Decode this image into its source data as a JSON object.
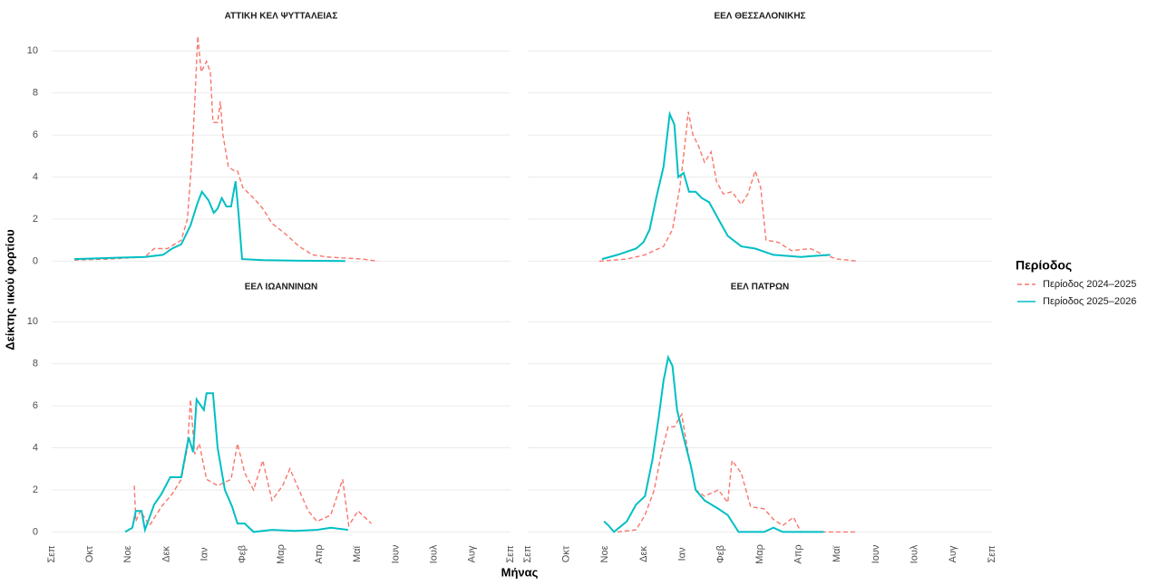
{
  "chart_data": {
    "type": "line",
    "ylabel": "Δείκτης ιικού φορτίου",
    "xlabel": "Μήνας",
    "xlim": [
      0,
      12
    ],
    "xticks": [
      {
        "value": 0,
        "label": "Σεπ"
      },
      {
        "value": 1,
        "label": "Οκτ"
      },
      {
        "value": 2,
        "label": "Νοε"
      },
      {
        "value": 3,
        "label": "Δεκ"
      },
      {
        "value": 4,
        "label": "Ιαν"
      },
      {
        "value": 5,
        "label": "Φεβ"
      },
      {
        "value": 6,
        "label": "Μαρ"
      },
      {
        "value": 7,
        "label": "Απρ"
      },
      {
        "value": 8,
        "label": "Μαϊ"
      },
      {
        "value": 9,
        "label": "Ιουν"
      },
      {
        "value": 10,
        "label": "Ιουλ"
      },
      {
        "value": 11,
        "label": "Αυγ"
      },
      {
        "value": 12,
        "label": "Σεπ"
      }
    ],
    "ylim": [
      -0.5,
      11
    ],
    "yticks": [
      0,
      2,
      4,
      6,
      8,
      10
    ],
    "grid": true,
    "legend": {
      "title": "Περίοδος",
      "position": "right",
      "series": [
        {
          "name": "Περίοδος 2024–2025",
          "color": "#f8766d",
          "dash": "dashed"
        },
        {
          "name": "Περίοδος 2025–2026",
          "color": "#00bfc4",
          "dash": "solid"
        }
      ]
    },
    "panels": [
      {
        "title": "ΑΤΤΙΚΗ ΚΕΛ ΨΥΤΤΑΛΕΙΑΣ",
        "series": [
          {
            "x": [
              0.59,
              1.49,
              2.44,
              2.68,
              3.03,
              3.39,
              3.55,
              3.67,
              3.74,
              3.82,
              3.91,
              4.05,
              4.15,
              4.22,
              4.34,
              4.41,
              4.48,
              4.62,
              4.77,
              4.86,
              5.0,
              5.28,
              5.52,
              5.76,
              6.11,
              6.47,
              6.82,
              7.18,
              7.65,
              8.13,
              8.53
            ],
            "values": [
              0.05,
              0.1,
              0.2,
              0.6,
              0.6,
              1,
              2,
              5,
              7.5,
              10.7,
              9,
              9.5,
              9,
              6.6,
              6.6,
              7.6,
              6,
              4.5,
              4.3,
              4.3,
              3.5,
              3,
              2.5,
              1.8,
              1.3,
              0.7,
              0.3,
              0.2,
              0.15,
              0.1,
              0
            ]
          },
          {
            "x": [
              0.59,
              1.49,
              2.44,
              2.91,
              3.15,
              3.39,
              3.63,
              3.82,
              3.93,
              4.1,
              4.24,
              4.34,
              4.45,
              4.57,
              4.69,
              4.81,
              4.88,
              4.98,
              5.52,
              6.47,
              7.68
            ],
            "values": [
              0.1,
              0.15,
              0.2,
              0.3,
              0.6,
              0.8,
              1.7,
              2.8,
              3.3,
              2.9,
              2.3,
              2.5,
              3.0,
              2.6,
              2.6,
              3.8,
              2.4,
              0.1,
              0.05,
              0.02,
              0.01
            ]
          }
        ]
      },
      {
        "title": "ΕΕΛ ΘΕΣΣΑΛΟΝΙΚΗΣ",
        "series": [
          {
            "x": [
              1.85,
              2.56,
              3.03,
              3.51,
              3.74,
              3.93,
              4.03,
              4.15,
              4.27,
              4.41,
              4.57,
              4.74,
              4.88,
              5.05,
              5.28,
              5.52,
              5.69,
              5.88,
              6.02,
              6.16,
              6.47,
              6.82,
              7.3,
              7.65,
              8.01,
              8.53
            ],
            "values": [
              0,
              0.1,
              0.3,
              0.7,
              1.5,
              3.5,
              5,
              7.1,
              6,
              5.5,
              4.7,
              5.2,
              3.8,
              3.2,
              3.3,
              2.7,
              3.2,
              4.3,
              3.5,
              1,
              0.9,
              0.5,
              0.6,
              0.3,
              0.1,
              0
            ]
          },
          {
            "x": [
              1.92,
              2.32,
              2.8,
              2.99,
              3.15,
              3.32,
              3.51,
              3.67,
              3.79,
              3.89,
              4.03,
              4.17,
              4.34,
              4.5,
              4.69,
              4.93,
              5.17,
              5.52,
              5.88,
              6.35,
              7.06,
              7.82
            ],
            "values": [
              0.1,
              0.3,
              0.6,
              0.9,
              1.5,
              3,
              4.5,
              7,
              6.5,
              4,
              4.2,
              3.3,
              3.3,
              3,
              2.8,
              2,
              1.2,
              0.7,
              0.6,
              0.3,
              0.2,
              0.3
            ]
          }
        ]
      },
      {
        "title": "ΕΕΛ ΙΩΑΝΝΙΝΩΝ",
        "series": [
          {
            "x": [
              2.16,
              2.2,
              2.32,
              2.56,
              2.87,
              3.15,
              3.39,
              3.55,
              3.63,
              3.74,
              3.86,
              4.05,
              4.34,
              4.69,
              4.86,
              5.05,
              5.28,
              5.52,
              5.76,
              6.04,
              6.23,
              6.47,
              6.71,
              6.94,
              7.3,
              7.61,
              7.77,
              8.01,
              8.36
            ],
            "values": [
              2.2,
              0.5,
              1,
              0.3,
              1.2,
              1.8,
              2.5,
              4,
              6.3,
              3.7,
              4.2,
              2.5,
              2.2,
              2.5,
              4.2,
              2.8,
              2,
              3.4,
              1.5,
              2.2,
              3,
              2,
              1,
              0.5,
              0.8,
              2.5,
              0.3,
              1,
              0.4
            ]
          },
          {
            "x": [
              1.92,
              2.11,
              2.2,
              2.35,
              2.44,
              2.68,
              2.87,
              3.1,
              3.39,
              3.58,
              3.7,
              3.79,
              3.98,
              4.05,
              4.22,
              4.34,
              4.53,
              4.72,
              4.86,
              5.05,
              5.28,
              5.76,
              6.35,
              6.94,
              7.3,
              7.75
            ],
            "values": [
              0,
              0.2,
              1,
              1,
              0.1,
              1.3,
              1.8,
              2.6,
              2.6,
              4.5,
              3.8,
              6.3,
              5.8,
              6.6,
              6.6,
              4,
              2,
              1.2,
              0.4,
              0.4,
              0,
              0.1,
              0.05,
              0.1,
              0.2,
              0.1
            ]
          }
        ]
      },
      {
        "title": "ΕΕΛ ΠΑΤΡΩΝ",
        "series": [
          {
            "x": [
              2.32,
              2.8,
              3.03,
              3.27,
              3.46,
              3.63,
              3.79,
              3.98,
              4.15,
              4.34,
              4.57,
              4.93,
              5.17,
              5.28,
              5.52,
              5.76,
              6.11,
              6.35,
              6.59,
              6.87,
              7.06,
              8.01,
              8.48
            ],
            "values": [
              0,
              0.1,
              0.8,
              2,
              3.8,
              5,
              5,
              5.6,
              3.7,
              2,
              1.7,
              2,
              1.4,
              3.4,
              2.8,
              1.2,
              1.1,
              0.6,
              0.3,
              0.7,
              0,
              0,
              0
            ]
          },
          {
            "x": [
              1.97,
              2.09,
              2.23,
              2.56,
              2.8,
              3.03,
              3.22,
              3.39,
              3.51,
              3.63,
              3.74,
              3.86,
              4.03,
              4.22,
              4.34,
              4.57,
              4.93,
              5.17,
              5.45,
              6.11,
              6.35,
              6.59,
              7.65
            ],
            "values": [
              0.5,
              0.3,
              0,
              0.5,
              1.3,
              1.7,
              3.4,
              5.5,
              7.2,
              8.3,
              7.9,
              5.8,
              4.5,
              3.1,
              2,
              1.5,
              1.1,
              0.8,
              0,
              0,
              0.2,
              0,
              0
            ]
          }
        ]
      }
    ]
  }
}
